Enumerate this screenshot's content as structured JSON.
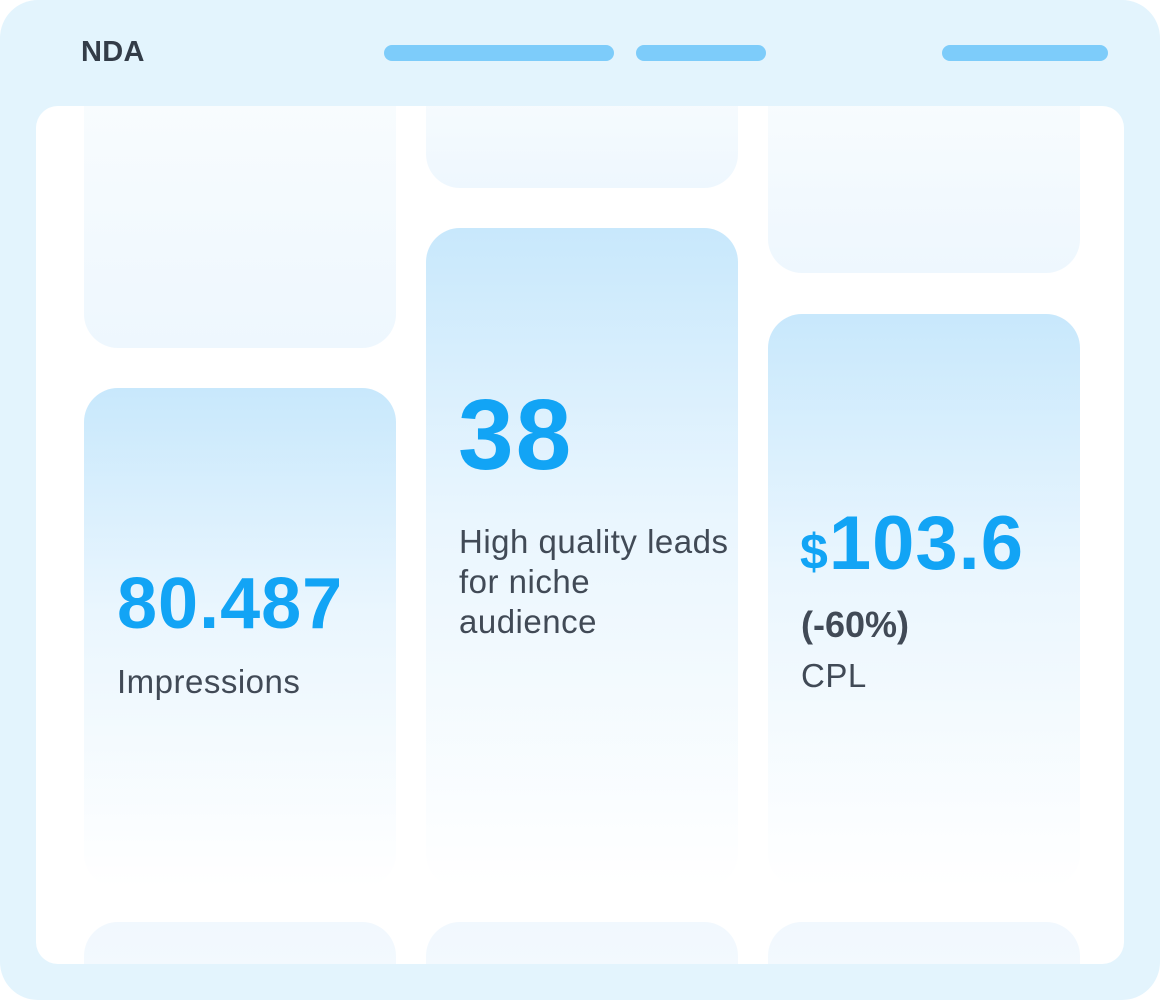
{
  "header": {
    "brand": "NDA"
  },
  "cards": {
    "impressions": {
      "value": "80.487",
      "label": "Impressions"
    },
    "leads": {
      "value": "38",
      "label": "High quality leads for niche audience"
    },
    "cpl": {
      "currency": "$",
      "value": "103.6",
      "change": "(-60%)",
      "label": "CPL"
    }
  },
  "colors": {
    "frame": "#e3f4fd",
    "accent": "#12a4f5",
    "nav_placeholder": "#7dccfa",
    "text_dark": "#333c48"
  }
}
